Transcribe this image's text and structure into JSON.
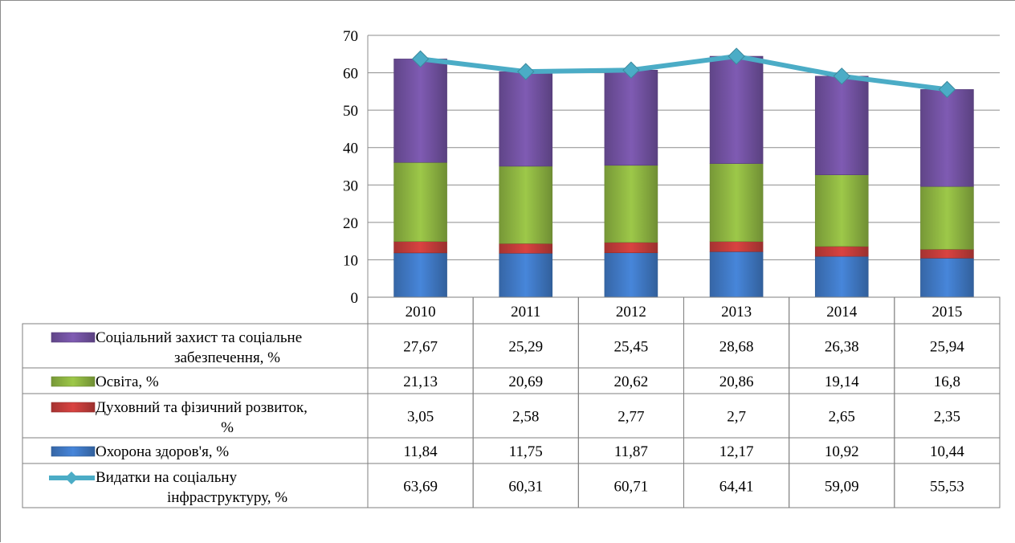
{
  "chart_data": {
    "type": "bar",
    "subtype": "stacked-bar-with-line-and-data-table",
    "categories": [
      "2010",
      "2011",
      "2012",
      "2013",
      "2014",
      "2015"
    ],
    "ylim": [
      0,
      70
    ],
    "yticks": [
      "0",
      "10",
      "20",
      "30",
      "40",
      "50",
      "60",
      "70"
    ],
    "grid": true,
    "legend_placement": "data-table",
    "series": [
      {
        "name": "Охорона здоров'я, %",
        "label_lines": [
          "Охорона здоров'я, %"
        ],
        "type": "bar",
        "color": "#3F78C3",
        "values": [
          11.84,
          11.75,
          11.87,
          12.17,
          10.92,
          10.44
        ],
        "display": [
          "11,84",
          "11,75",
          "11,87",
          "12,17",
          "10,92",
          "10,44"
        ]
      },
      {
        "name": "Духовний та фізичний розвиток, %",
        "label_lines": [
          "Духовний та фізичний розвиток,",
          "%"
        ],
        "type": "bar",
        "color": "#C23C3A",
        "values": [
          3.05,
          2.58,
          2.77,
          2.7,
          2.65,
          2.35
        ],
        "display": [
          "3,05",
          "2,58",
          "2,77",
          "2,7",
          "2,65",
          "2,35"
        ]
      },
      {
        "name": "Освіта, %",
        "label_lines": [
          "Освіта, %"
        ],
        "type": "bar",
        "color": "#8CB341",
        "values": [
          21.13,
          20.69,
          20.62,
          20.86,
          19.14,
          16.8
        ],
        "display": [
          "21,13",
          "20,69",
          "20,62",
          "20,86",
          "19,14",
          "16,8"
        ]
      },
      {
        "name": "Соціальний захист та соціальне забезпечення, %",
        "label_lines": [
          "Соціальний захист та соціальне",
          "забезпечення, %"
        ],
        "type": "bar",
        "color": "#7151A0",
        "values": [
          27.67,
          25.29,
          25.45,
          28.68,
          26.38,
          25.94
        ],
        "display": [
          "27,67",
          "25,29",
          "25,45",
          "28,68",
          "26,38",
          "25,94"
        ]
      },
      {
        "name": "Видатки на соціальну інфраструктуру, %",
        "label_lines": [
          "Видатки на соціальну",
          "інфраструктуру, %"
        ],
        "type": "line",
        "color": "#4BACC6",
        "values": [
          63.69,
          60.31,
          60.71,
          64.41,
          59.09,
          55.53
        ],
        "display": [
          "63,69",
          "60,31",
          "60,71",
          "64,41",
          "59,09",
          "55,53"
        ]
      }
    ],
    "table_row_order": [
      3,
      2,
      1,
      0,
      4
    ]
  }
}
